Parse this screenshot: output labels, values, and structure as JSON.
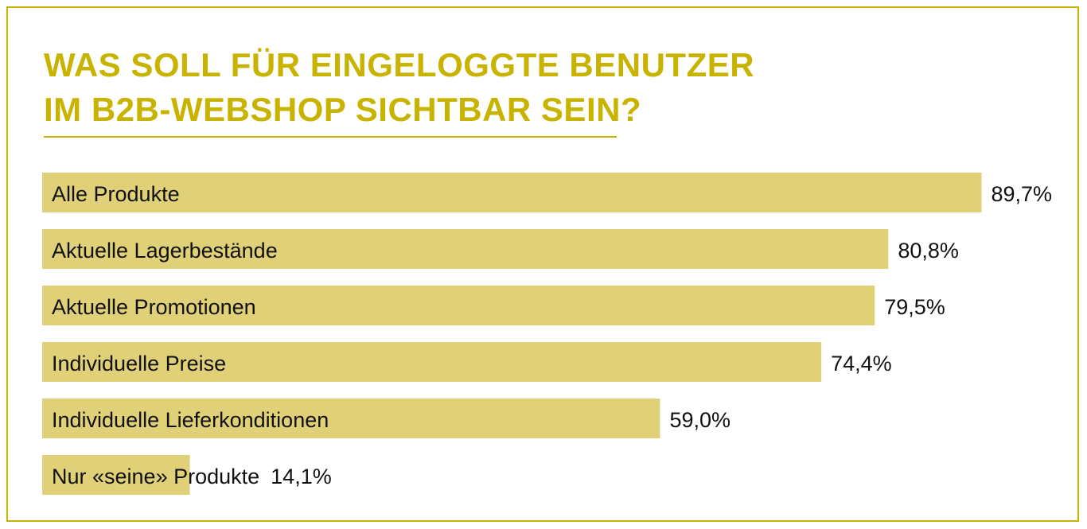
{
  "title_lines": [
    "WAS SOLL FÜR EINGELOGGTE BENUTZER",
    "IM B2B-WEBSHOP SICHTBAR SEIN?"
  ],
  "colors": {
    "accent": "#c8b400",
    "bar": "#e0d178",
    "text": "#111111",
    "border": "#c8b400"
  },
  "chart_data": {
    "type": "bar",
    "orientation": "horizontal",
    "title": "WAS SOLL FÜR EINGELOGGTE BENUTZER IM B2B-WEBSHOP SICHTBAR SEIN?",
    "categories": [
      "Alle Produkte",
      "Aktuelle Lagerbestände",
      "Aktuelle Promotionen",
      "Individuelle Preise",
      "Individuelle Lieferkonditionen",
      "Nur «seine» Produkte"
    ],
    "values": [
      89.7,
      80.8,
      79.5,
      74.4,
      59.0,
      14.1
    ],
    "value_labels": [
      "89,7%",
      "80,8%",
      "79,5%",
      "74,4%",
      "59,0%",
      "14,1%"
    ],
    "unit": "%",
    "xlim": [
      0,
      100
    ],
    "grid": false,
    "legend": "none"
  }
}
